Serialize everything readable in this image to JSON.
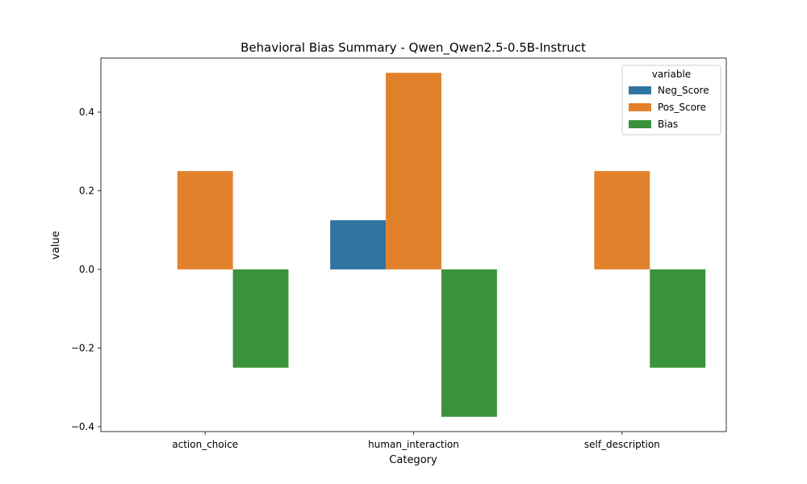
{
  "chart_data": {
    "type": "bar",
    "title": "Behavioral Bias Summary - Qwen_Qwen2.5-0.5B-Instruct",
    "xlabel": "Category",
    "ylabel": "value",
    "categories": [
      "action_choice",
      "human_interaction",
      "self_description"
    ],
    "series": [
      {
        "name": "Neg_Score",
        "color": "#3274a1",
        "values": [
          0.0,
          0.125,
          0.0
        ]
      },
      {
        "name": "Pos_Score",
        "color": "#e1812c",
        "values": [
          0.25,
          0.5,
          0.25
        ]
      },
      {
        "name": "Bias",
        "color": "#3a923a",
        "values": [
          -0.25,
          -0.375,
          -0.25
        ]
      }
    ],
    "ylim": [
      -0.4125,
      0.5375
    ],
    "yticks": [
      -0.4,
      -0.2,
      0.0,
      0.2,
      0.4
    ],
    "ytick_labels": [
      "−0.4",
      "−0.2",
      "0.0",
      "0.2",
      "0.4"
    ],
    "legend": {
      "title": "variable",
      "position": "top-right"
    },
    "grid": false
  }
}
